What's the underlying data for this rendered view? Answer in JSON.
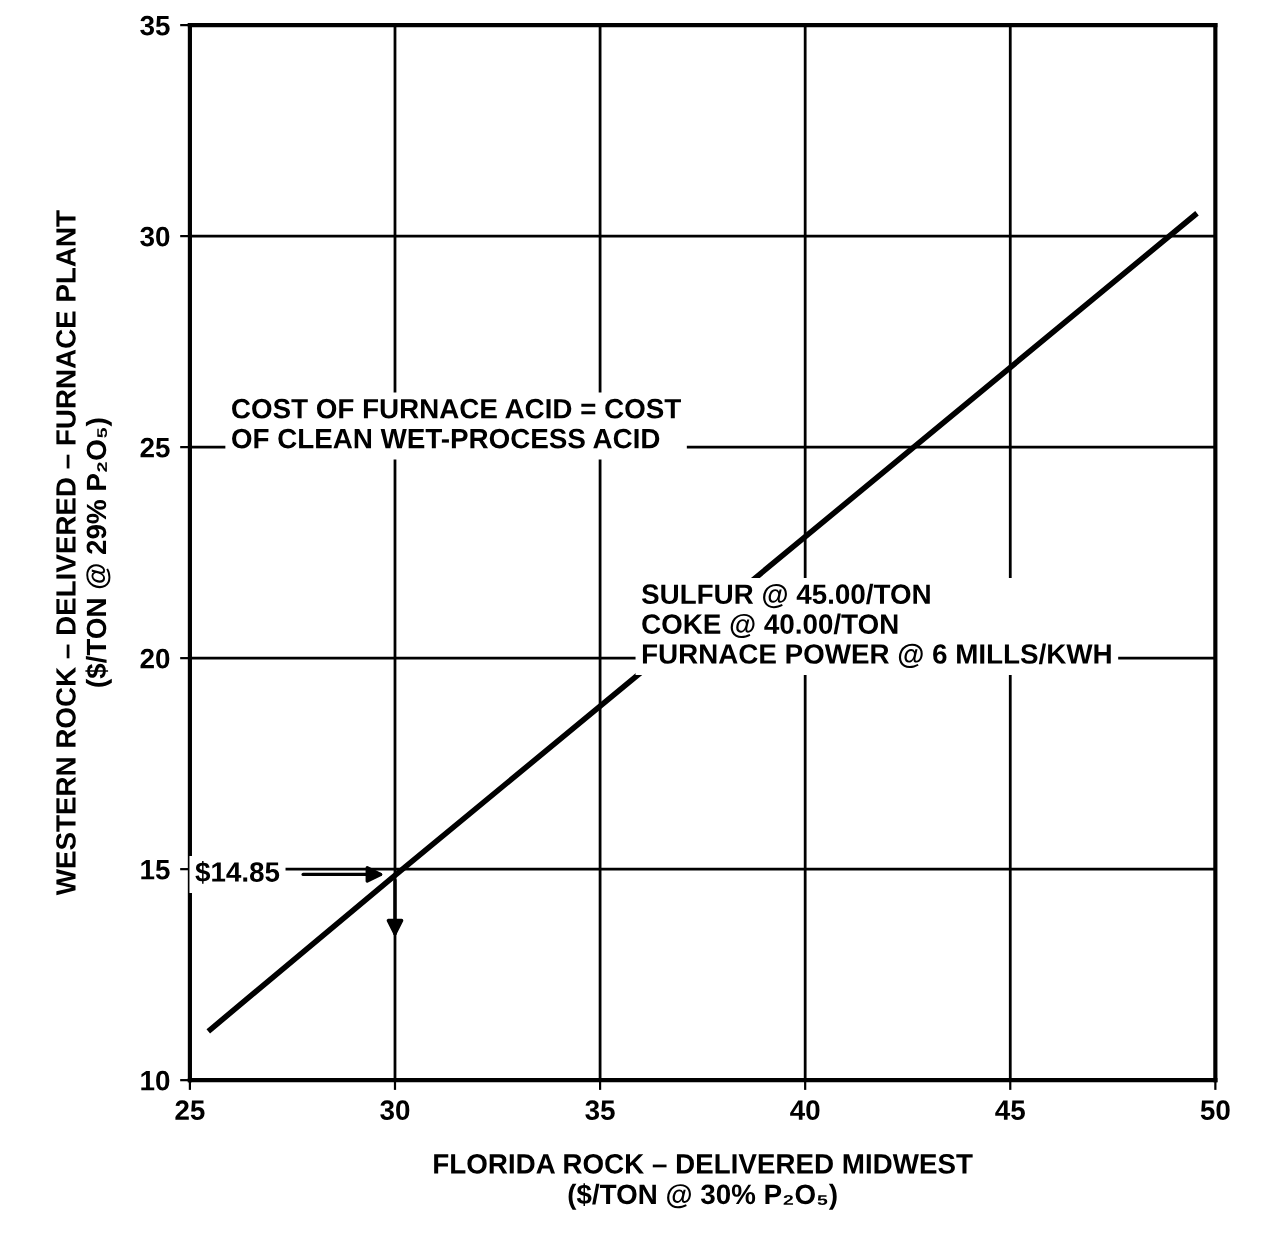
{
  "chart_data": {
    "type": "line",
    "xlabel": "FLORIDA ROCK – DELIVERED MIDWEST\n($/TON @ 30% P₂O₅)",
    "ylabel": "WESTERN ROCK – DELIVERED – FURNACE PLANT\n($/TON @ 29% P₂O₅)",
    "series": [
      {
        "color": "#000000",
        "x": [
          25.5,
          30,
          49.5
        ],
        "values": [
          11.2,
          14.85,
          30.5
        ]
      }
    ],
    "xlim": [
      25,
      50
    ],
    "xticks": [
      25,
      30,
      35,
      40,
      45,
      50
    ],
    "ylim": [
      10,
      35
    ],
    "yticks": [
      10,
      15,
      20,
      25,
      30,
      35
    ],
    "grid": true,
    "line_style": "solid",
    "marker": "none",
    "annotations": [
      "COST OF FURNACE ACID = COST\nOF CLEAN WET-PROCESS ACID",
      "SULFUR @ 45.00/TON\nCOKE @ 40.00/TON\nFURNACE POWER @ 6 MILLS/KWH",
      "$14.85"
    ]
  }
}
